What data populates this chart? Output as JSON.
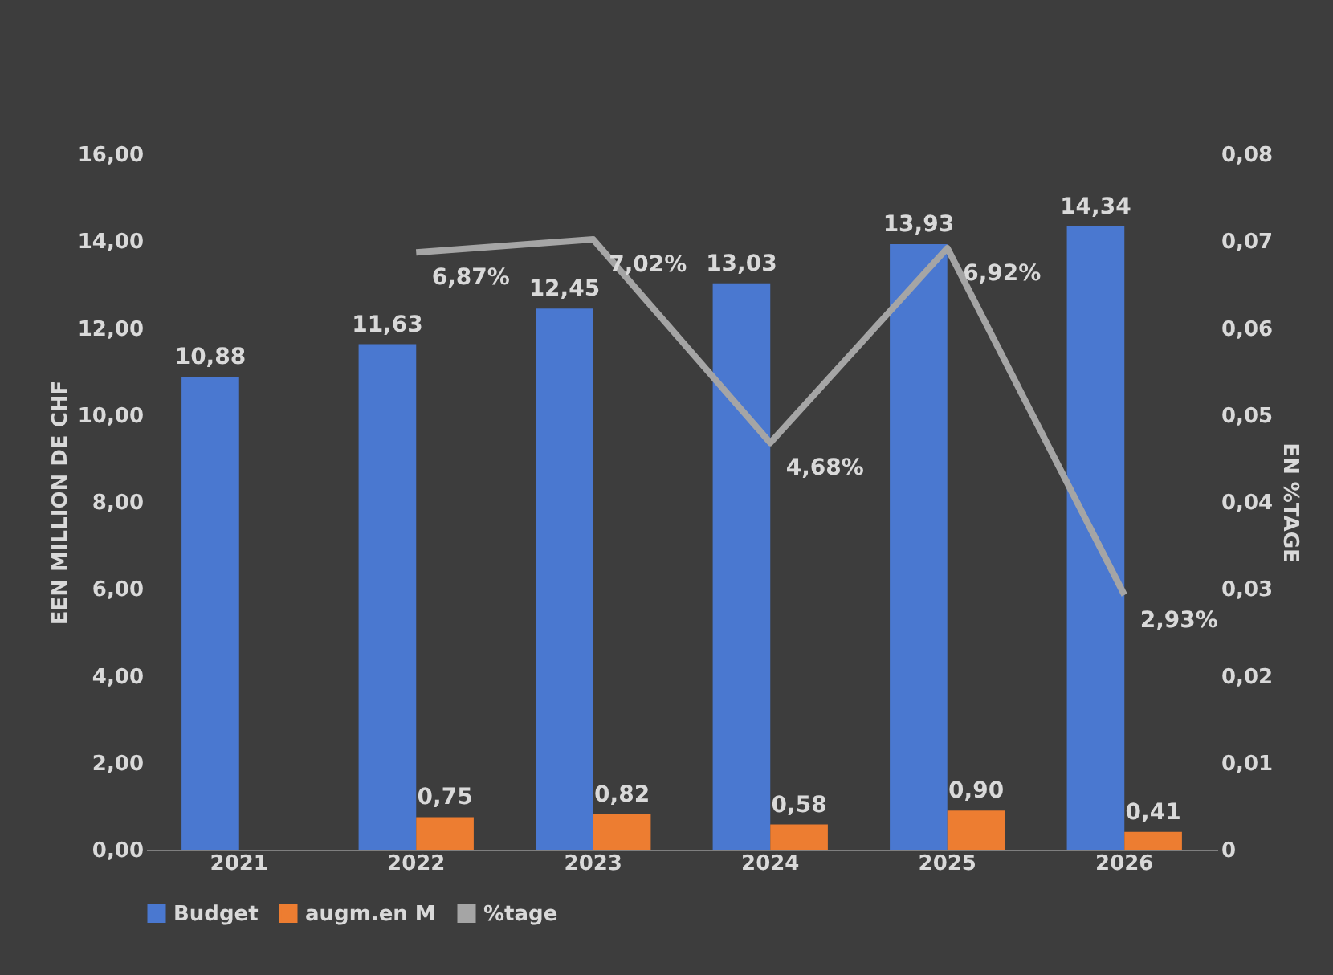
{
  "chart_data": {
    "type": "bar",
    "categories": [
      "2021",
      "2022",
      "2023",
      "2024",
      "2025",
      "2026"
    ],
    "ylabel": "EEN MILLION DE CHF",
    "y2label": "EN %TAGE",
    "ylim": [
      0,
      16
    ],
    "yticks": [
      {
        "value": 0,
        "label": "0,00"
      },
      {
        "value": 2,
        "label": "2,00"
      },
      {
        "value": 4,
        "label": "4,00"
      },
      {
        "value": 6,
        "label": "6,00"
      },
      {
        "value": 8,
        "label": "8,00"
      },
      {
        "value": 10,
        "label": "10,00"
      },
      {
        "value": 12,
        "label": "12,00"
      },
      {
        "value": 14,
        "label": "14,00"
      },
      {
        "value": 16,
        "label": "16,00"
      }
    ],
    "y2lim": [
      0,
      0.08
    ],
    "y2ticks": [
      0,
      {
        "value": 0.01,
        "label": "0,01"
      },
      {
        "value": 0.02,
        "label": "0,02"
      },
      {
        "value": 0.03,
        "label": "0,03"
      },
      {
        "value": 0.04,
        "label": "0,04"
      },
      {
        "value": 0.05,
        "label": "0,05"
      },
      {
        "value": 0.06,
        "label": "0,06"
      },
      {
        "value": 0.07,
        "label": "0,07"
      },
      {
        "value": 0.08,
        "label": "0,08"
      }
    ],
    "series": [
      {
        "name": "Budget",
        "color": "#4a78d0",
        "values": [
          10.88,
          11.63,
          12.45,
          13.03,
          13.93,
          14.34
        ],
        "value_labels": [
          "10,88",
          "11,63",
          "12,45",
          "13,03",
          "13,93",
          "14,34"
        ]
      },
      {
        "name": "augm.en M",
        "color": "#ed7d31",
        "values": [
          null,
          0.75,
          0.82,
          0.58,
          0.9,
          0.41
        ],
        "value_labels": [
          null,
          "0,75",
          "0,82",
          "0,58",
          "0,90",
          "0,41"
        ]
      },
      {
        "name": "%tage",
        "type": "line",
        "axis": "y2",
        "color": "#a5a5a5",
        "values": [
          null,
          0.0687,
          0.0702,
          0.0468,
          0.0692,
          0.0293
        ],
        "value_labels": [
          null,
          "6,87%",
          "7,02%",
          "4,68%",
          "6,92%",
          "2,93%"
        ]
      }
    ],
    "grid": false,
    "legend": "bottom",
    "marker": "none",
    "line_style": "solid"
  }
}
